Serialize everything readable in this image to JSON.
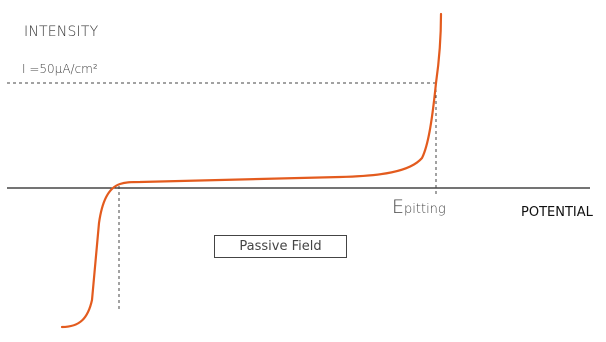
{
  "diagram": {
    "y_axis_label": "INTENSITY",
    "threshold_label": "I =50μA/cm²",
    "potential_marker": {
      "main": "E",
      "subscript": "pitting"
    },
    "x_axis_label": "POTENTIAL",
    "region_label": "Passive Field",
    "colors": {
      "curve": "#e35b1e",
      "axis": "#222222",
      "guide": "#444444",
      "text": "#333333"
    }
  }
}
